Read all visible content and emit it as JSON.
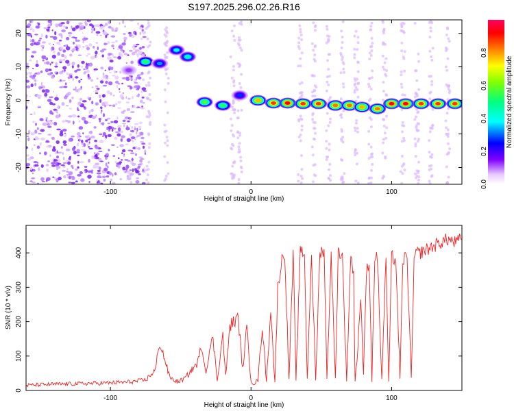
{
  "title": "S197.2025.296.02.26.R16",
  "chart_data": [
    {
      "type": "heatmap",
      "xlabel": "Height of straight line (km)",
      "ylabel": "Frequency (Hz)",
      "xlim": [
        -160,
        150
      ],
      "ylim": [
        -25,
        24
      ],
      "x_ticks": [
        -100,
        0,
        100
      ],
      "y_ticks": [
        -20,
        -10,
        0,
        10,
        20
      ],
      "colorbar": {
        "label": "Normalized spectral amplitude",
        "range": [
          0,
          1
        ],
        "ticks": [
          "0.0",
          "0.2",
          "0.4",
          "0.6",
          "0.8"
        ],
        "colors": [
          "#ffffff",
          "#e0b0ff",
          "#8000ff",
          "#0000ff",
          "#00ffff",
          "#00ff80",
          "#ffff00",
          "#ff8000",
          "#ff0000",
          "#ff0060"
        ]
      },
      "peak_track": [
        {
          "x": -87,
          "f": 9,
          "a": 0.15
        },
        {
          "x": -75,
          "f": 11.5,
          "a": 0.55
        },
        {
          "x": -65,
          "f": 11,
          "a": 0.35
        },
        {
          "x": -53,
          "f": 15,
          "a": 0.4
        },
        {
          "x": -45,
          "f": 13,
          "a": 0.45
        },
        {
          "x": -33,
          "f": -0.5,
          "a": 0.6
        },
        {
          "x": -20,
          "f": -1.5,
          "a": 0.55
        },
        {
          "x": -8,
          "f": 1.5,
          "a": 0.3
        },
        {
          "x": 5,
          "f": 0,
          "a": 0.8
        },
        {
          "x": 16,
          "f": -0.8,
          "a": 0.9
        },
        {
          "x": 26,
          "f": -0.8,
          "a": 0.95
        },
        {
          "x": 37,
          "f": -1,
          "a": 0.9
        },
        {
          "x": 48,
          "f": -1,
          "a": 0.9
        },
        {
          "x": 60,
          "f": -1.5,
          "a": 0.85
        },
        {
          "x": 70,
          "f": -1.5,
          "a": 0.85
        },
        {
          "x": 79,
          "f": -2,
          "a": 0.8
        },
        {
          "x": 90,
          "f": -2.5,
          "a": 0.85
        },
        {
          "x": 100,
          "f": -1,
          "a": 0.95
        },
        {
          "x": 110,
          "f": -1,
          "a": 0.95
        },
        {
          "x": 121,
          "f": -1,
          "a": 0.9
        },
        {
          "x": 133,
          "f": -1,
          "a": 0.9
        },
        {
          "x": 145,
          "f": -1,
          "a": 0.9
        }
      ]
    },
    {
      "type": "line",
      "xlabel": "Height of straight line (km)",
      "ylabel": "SNR (10 * v/v)",
      "xlim": [
        -160,
        150
      ],
      "ylim": [
        0,
        480
      ],
      "x_ticks": [
        -100,
        0,
        100
      ],
      "y_ticks": [
        0,
        100,
        200,
        300,
        400
      ],
      "series": [
        {
          "color": "#ee2222",
          "x": [
            -160,
            -140,
            -120,
            -100,
            -85,
            -75,
            -68,
            -65,
            -62,
            -58,
            -55,
            -52,
            -47,
            -42,
            -38,
            -35,
            -32,
            -30,
            -27,
            -24,
            -22,
            -20,
            -18,
            -15,
            -12,
            -9,
            -6,
            -3,
            0,
            2,
            5,
            8,
            11,
            14,
            17,
            19,
            22,
            24,
            27,
            30,
            32,
            35,
            38,
            40,
            43,
            46,
            49,
            52,
            54,
            57,
            60,
            62,
            65,
            68,
            71,
            73,
            74,
            76,
            78,
            80,
            82,
            84,
            86,
            88,
            90,
            93,
            96,
            98,
            100,
            103,
            106,
            108,
            111,
            114,
            116,
            118,
            120,
            125,
            130,
            135,
            140,
            145,
            150
          ],
          "y": [
            15,
            18,
            20,
            22,
            25,
            30,
            60,
            140,
            100,
            40,
            30,
            25,
            35,
            60,
            80,
            130,
            50,
            110,
            150,
            30,
            100,
            160,
            40,
            190,
            200,
            210,
            60,
            180,
            30,
            20,
            30,
            190,
            25,
            240,
            20,
            300,
            380,
            400,
            30,
            400,
            25,
            400,
            400,
            30,
            400,
            30,
            400,
            410,
            30,
            400,
            30,
            405,
            390,
            30,
            400,
            330,
            30,
            120,
            280,
            40,
            340,
            380,
            30,
            390,
            380,
            30,
            380,
            20,
            390,
            380,
            30,
            380,
            390,
            30,
            380,
            400,
            400,
            410,
            420,
            430,
            440,
            430,
            440
          ]
        }
      ]
    }
  ]
}
